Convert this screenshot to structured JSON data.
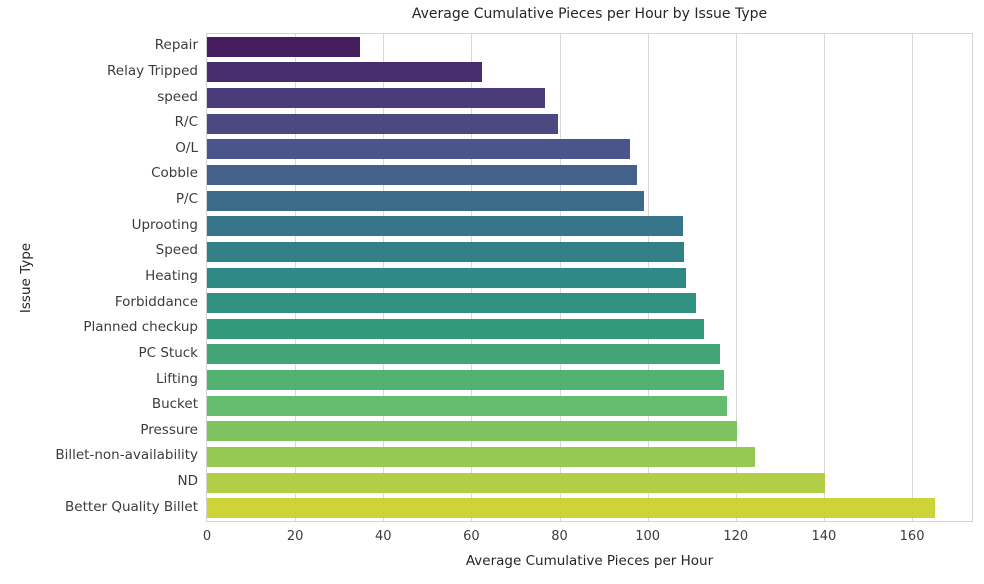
{
  "chart_data": {
    "type": "bar",
    "orientation": "horizontal",
    "title": "Average Cumulative Pieces per Hour by Issue Type",
    "xlabel": "Average Cumulative Pieces per Hour",
    "ylabel": "Issue Type",
    "xlim": [
      0,
      173.6
    ],
    "x_ticks": [
      0,
      20,
      40,
      60,
      80,
      100,
      120,
      140,
      160
    ],
    "grid": "vertical",
    "legend": "none",
    "categories": [
      "Repair",
      "Relay Tripped",
      "speed",
      "R/C",
      "O/L",
      "Cobble",
      "P/C",
      "Uprooting",
      "Speed",
      "Heating",
      "Forbiddance",
      "Planned checkup",
      "PC Stuck",
      "Lifting",
      "Bucket",
      "Pressure",
      "Billet-non-availability",
      "ND",
      "Better Quality Billet"
    ],
    "values": [
      34.8,
      62.3,
      76.6,
      79.7,
      95.9,
      97.5,
      99.1,
      108.1,
      108.3,
      108.8,
      110.9,
      112.8,
      116.4,
      117.3,
      117.9,
      120.3,
      124.3,
      140.2,
      165.3
    ],
    "bar_colors": [
      "#451d5f",
      "#482d6c",
      "#4a3c78",
      "#4a4982",
      "#4a568b",
      "#44618b",
      "#3d6b8a",
      "#37758a",
      "#338087",
      "#2f8a85",
      "#319180",
      "#33997a",
      "#43a576",
      "#53b172",
      "#64bd6e",
      "#7dc360",
      "#95c853",
      "#b1ce46",
      "#cdd438"
    ],
    "grid_color": "#d9d9d9",
    "text_color": "#262626"
  }
}
